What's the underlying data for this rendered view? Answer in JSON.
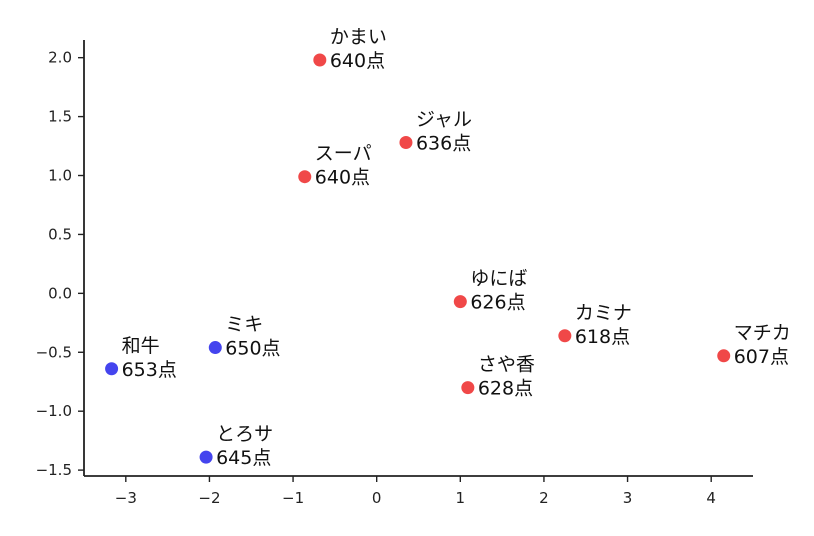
{
  "chart_data": {
    "type": "scatter",
    "title": "",
    "xlabel": "",
    "ylabel": "",
    "xlim": [
      -3.5,
      4.5
    ],
    "ylim": [
      -1.55,
      2.15
    ],
    "xticks": [
      -3,
      -2,
      -1,
      0,
      1,
      2,
      3,
      4
    ],
    "yticks": [
      -1.5,
      -1.0,
      -0.5,
      0.0,
      0.5,
      1.0,
      1.5,
      2.0
    ],
    "xtick_labels": [
      "−3",
      "−2",
      "−1",
      "0",
      "1",
      "2",
      "3",
      "4"
    ],
    "ytick_labels": [
      "−1.5",
      "−1.0",
      "−0.5",
      "0.0",
      "0.5",
      "1.0",
      "1.5",
      "2.0"
    ],
    "grid": false,
    "points": [
      {
        "name": "かまい",
        "score": "640点",
        "x": -0.68,
        "y": 1.98,
        "color": "#f04848"
      },
      {
        "name": "ジャル",
        "score": "636点",
        "x": 0.35,
        "y": 1.28,
        "color": "#f04848"
      },
      {
        "name": "スーパ",
        "score": "640点",
        "x": -0.86,
        "y": 0.99,
        "color": "#f04848"
      },
      {
        "name": "ゆにば",
        "score": "626点",
        "x": 1.0,
        "y": -0.07,
        "color": "#f04848"
      },
      {
        "name": "カミナ",
        "score": "618点",
        "x": 2.25,
        "y": -0.36,
        "color": "#f04848"
      },
      {
        "name": "マチカ",
        "score": "607点",
        "x": 4.15,
        "y": -0.53,
        "color": "#f04848"
      },
      {
        "name": "さや香",
        "score": "628点",
        "x": 1.09,
        "y": -0.8,
        "color": "#f04848"
      },
      {
        "name": "ミキ",
        "score": "650点",
        "x": -1.93,
        "y": -0.46,
        "color": "#4444ee"
      },
      {
        "name": "和牛",
        "score": "653点",
        "x": -3.17,
        "y": -0.64,
        "color": "#4444ee"
      },
      {
        "name": "とろサ",
        "score": "645点",
        "x": -2.04,
        "y": -1.39,
        "color": "#4444ee"
      }
    ]
  }
}
